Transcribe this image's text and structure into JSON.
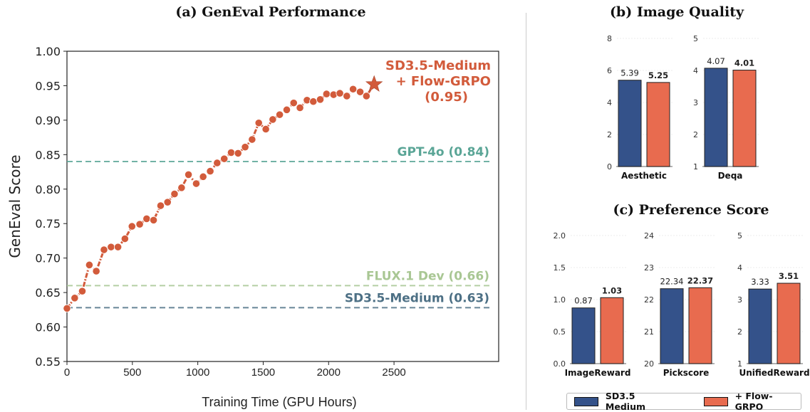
{
  "panels": {
    "a_title": "(a) GenEval Performance",
    "b_title": "(b) Image Quality",
    "c_title": "(c) Preference Score"
  },
  "colors": {
    "flow_grpo": "#d25b3b",
    "gpt4o": "#5aa596",
    "flux": "#a9c794",
    "sd35": "#4d7085",
    "bar_sd35": "#34528a",
    "bar_flow": "#e86b4f"
  },
  "legend": {
    "items": [
      "SD3.5 Medium",
      "+ Flow-GRPO"
    ]
  },
  "chart_data": [
    {
      "type": "line",
      "title": "(a) GenEval Performance",
      "xlabel": "Training Time (GPU Hours)",
      "ylabel": "GenEval Score",
      "xlim": [
        0,
        3300
      ],
      "ylim": [
        0.55,
        1.0
      ],
      "xticks": [
        "0",
        "500",
        "1000",
        "1500",
        "2000",
        "2500"
      ],
      "xtick_values": [
        0,
        500,
        1000,
        1500,
        2000,
        2500
      ],
      "yticks": [
        "0.55",
        "0.60",
        "0.65",
        "0.70",
        "0.75",
        "0.80",
        "0.85",
        "0.90",
        "0.95",
        "1.00"
      ],
      "ytick_values": [
        0.55,
        0.6,
        0.65,
        0.7,
        0.75,
        0.8,
        0.85,
        0.9,
        0.95,
        1.0
      ],
      "series": [
        {
          "name": "SD3.5-Medium + Flow-GRPO",
          "x": [
            0,
            59,
            117,
            171,
            224,
            283,
            337,
            390,
            443,
            497,
            556,
            609,
            662,
            716,
            769,
            822,
            876,
            929,
            988,
            1041,
            1095,
            1148,
            1202,
            1255,
            1308,
            1362,
            1415,
            1466,
            1520,
            1573,
            1626,
            1680,
            1733,
            1781,
            1835,
            1883,
            1936,
            1984,
            2038,
            2086,
            2139,
            2187,
            2241,
            2289
          ],
          "y": [
            0.627,
            0.642,
            0.652,
            0.69,
            0.681,
            0.712,
            0.716,
            0.716,
            0.728,
            0.746,
            0.749,
            0.757,
            0.755,
            0.776,
            0.781,
            0.793,
            0.802,
            0.821,
            0.808,
            0.818,
            0.826,
            0.838,
            0.844,
            0.853,
            0.852,
            0.861,
            0.872,
            0.896,
            0.887,
            0.901,
            0.908,
            0.915,
            0.925,
            0.918,
            0.929,
            0.927,
            0.93,
            0.938,
            0.937,
            0.939,
            0.935,
            0.945,
            0.941,
            0.935
          ]
        }
      ],
      "final_point": {
        "x": 2348,
        "y": 0.952,
        "marker": "star"
      },
      "reference_lines": [
        {
          "name": "GPT-4o",
          "label": "GPT-4o (0.84)",
          "y": 0.84
        },
        {
          "name": "FLUX.1 Dev",
          "label": "FLUX.1 Dev (0.66)",
          "y": 0.66
        },
        {
          "name": "SD3.5-Medium",
          "label": "SD3.5-Medium (0.63)",
          "y": 0.628
        }
      ],
      "annotation": [
        "SD3.5-Medium",
        "+ Flow-GRPO",
        "(0.95)"
      ]
    },
    {
      "type": "bar",
      "title": "Aesthetic",
      "group": "(b) Image Quality",
      "categories": [
        "SD3.5 Medium",
        "+ Flow-GRPO"
      ],
      "values": [
        5.39,
        5.25
      ],
      "labels": [
        "5.39",
        "5.25"
      ],
      "ylim": [
        0,
        8
      ],
      "yticks": [
        "0",
        "2",
        "4",
        "6",
        "8"
      ],
      "ytick_values": [
        0,
        2,
        4,
        6,
        8
      ]
    },
    {
      "type": "bar",
      "title": "Deqa",
      "group": "(b) Image Quality",
      "categories": [
        "SD3.5 Medium",
        "+ Flow-GRPO"
      ],
      "values": [
        4.07,
        4.01
      ],
      "labels": [
        "4.07",
        "4.01"
      ],
      "ylim": [
        1,
        5
      ],
      "yticks": [
        "1",
        "2",
        "3",
        "4",
        "5"
      ],
      "ytick_values": [
        1,
        2,
        3,
        4,
        5
      ]
    },
    {
      "type": "bar",
      "title": "ImageReward",
      "group": "(c) Preference Score",
      "categories": [
        "SD3.5 Medium",
        "+ Flow-GRPO"
      ],
      "values": [
        0.87,
        1.03
      ],
      "labels": [
        "0.87",
        "1.03"
      ],
      "ylim": [
        0,
        2
      ],
      "yticks": [
        "0.0",
        "0.5",
        "1.0",
        "1.5",
        "2.0"
      ],
      "ytick_values": [
        0,
        0.5,
        1.0,
        1.5,
        2.0
      ]
    },
    {
      "type": "bar",
      "title": "Pickscore",
      "group": "(c) Preference Score",
      "categories": [
        "SD3.5 Medium",
        "+ Flow-GRPO"
      ],
      "values": [
        22.34,
        22.37
      ],
      "labels": [
        "22.34",
        "22.37"
      ],
      "ylim": [
        20,
        24
      ],
      "yticks": [
        "20",
        "21",
        "22",
        "23",
        "24"
      ],
      "ytick_values": [
        20,
        21,
        22,
        23,
        24
      ]
    },
    {
      "type": "bar",
      "title": "UnifiedReward",
      "group": "(c) Preference Score",
      "categories": [
        "SD3.5 Medium",
        "+ Flow-GRPO"
      ],
      "values": [
        3.33,
        3.51
      ],
      "labels": [
        "3.33",
        "3.51"
      ],
      "ylim": [
        1,
        5
      ],
      "yticks": [
        "1",
        "2",
        "3",
        "4",
        "5"
      ],
      "ytick_values": [
        1,
        2,
        3,
        4,
        5
      ]
    }
  ]
}
